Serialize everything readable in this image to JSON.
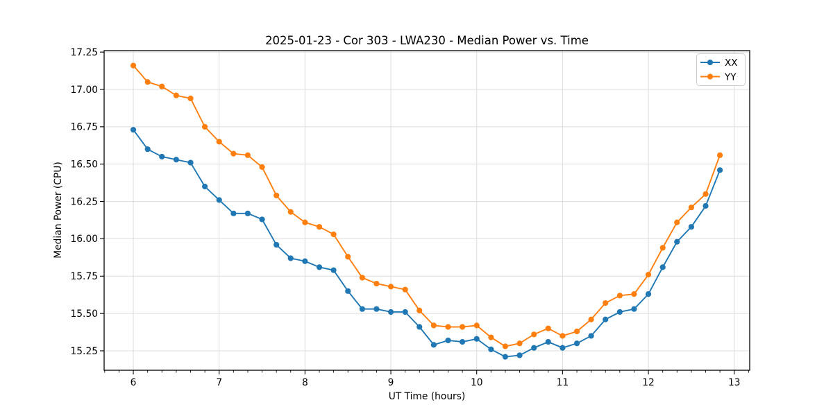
{
  "chart_data": {
    "type": "line",
    "title": "2025-01-23 - Cor 303 - LWA230 - Median Power vs. Time",
    "xlabel": "UT Time (hours)",
    "ylabel": "Median Power (CPU)",
    "xlim": [
      5.66,
      13.18
    ],
    "ylim": [
      15.12,
      17.26
    ],
    "xticks": [
      6,
      7,
      8,
      9,
      10,
      11,
      12,
      13
    ],
    "xtick_labels": [
      "6",
      "7",
      "8",
      "9",
      "10",
      "11",
      "12",
      "13"
    ],
    "yticks": [
      15.25,
      15.5,
      15.75,
      16.0,
      16.25,
      16.5,
      16.75,
      17.0,
      17.25
    ],
    "ytick_labels": [
      "15.25",
      "15.50",
      "15.75",
      "16.00",
      "16.25",
      "16.50",
      "16.75",
      "17.00",
      "17.25"
    ],
    "x_minor_tick_interval_hours": 0.1667,
    "grid": true,
    "grid_color": "#dcdcdc",
    "legend": {
      "position": "upper right",
      "entries": [
        "XX",
        "YY"
      ]
    },
    "x": [
      6.0,
      6.167,
      6.333,
      6.5,
      6.667,
      6.833,
      7.0,
      7.167,
      7.333,
      7.5,
      7.667,
      7.833,
      8.0,
      8.167,
      8.333,
      8.5,
      8.667,
      8.833,
      9.0,
      9.167,
      9.333,
      9.5,
      9.667,
      9.833,
      10.0,
      10.167,
      10.333,
      10.5,
      10.667,
      10.833,
      11.0,
      11.167,
      11.333,
      11.5,
      11.667,
      11.833,
      12.0,
      12.167,
      12.333,
      12.5,
      12.667,
      12.833
    ],
    "series": [
      {
        "name": "XX",
        "color": "#1f77b4",
        "values": [
          16.73,
          16.6,
          16.55,
          16.53,
          16.51,
          16.35,
          16.26,
          16.17,
          16.17,
          16.13,
          15.96,
          15.87,
          15.85,
          15.81,
          15.79,
          15.65,
          15.53,
          15.53,
          15.51,
          15.51,
          15.41,
          15.29,
          15.32,
          15.31,
          15.33,
          15.26,
          15.21,
          15.22,
          15.27,
          15.31,
          15.27,
          15.3,
          15.35,
          15.46,
          15.51,
          15.53,
          15.63,
          15.81,
          15.98,
          16.08,
          16.22,
          16.46
        ]
      },
      {
        "name": "YY",
        "color": "#ff7f0e",
        "values": [
          17.16,
          17.05,
          17.02,
          16.96,
          16.94,
          16.75,
          16.65,
          16.57,
          16.56,
          16.48,
          16.29,
          16.18,
          16.11,
          16.08,
          16.03,
          15.88,
          15.74,
          15.7,
          15.68,
          15.66,
          15.52,
          15.42,
          15.41,
          15.41,
          15.42,
          15.34,
          15.28,
          15.3,
          15.36,
          15.4,
          15.35,
          15.38,
          15.46,
          15.57,
          15.62,
          15.63,
          15.76,
          15.94,
          16.11,
          16.21,
          16.3,
          16.56
        ]
      }
    ]
  }
}
